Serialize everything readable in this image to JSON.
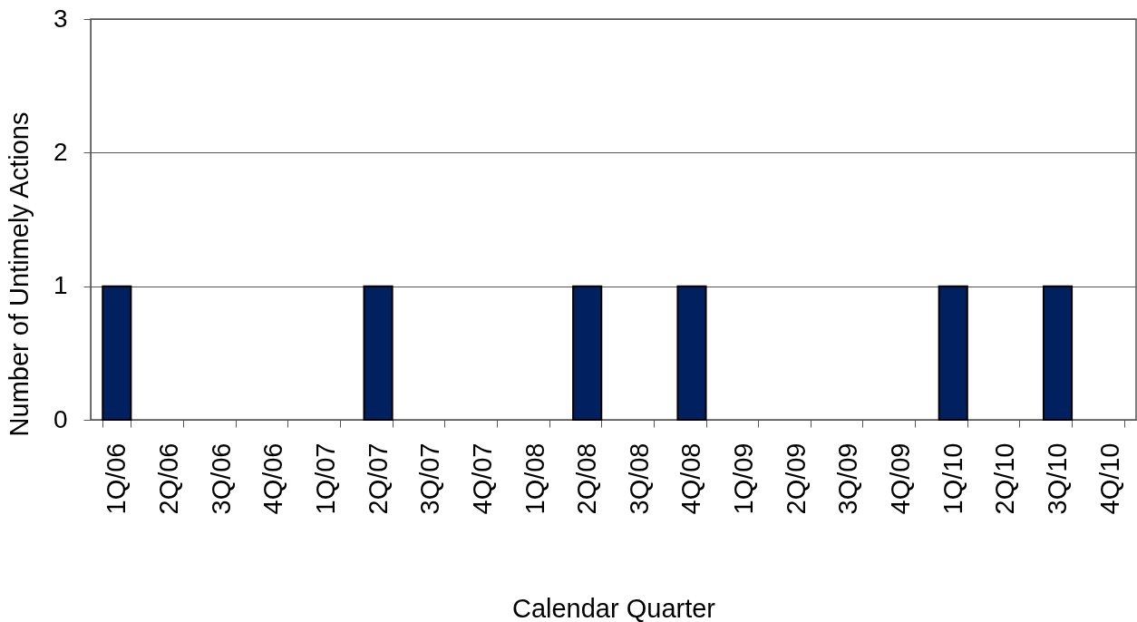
{
  "chart_data": {
    "type": "bar",
    "categories": [
      "1Q/06",
      "2Q/06",
      "3Q/06",
      "4Q/06",
      "1Q/07",
      "2Q/07",
      "3Q/07",
      "4Q/07",
      "1Q/08",
      "2Q/08",
      "3Q/08",
      "4Q/08",
      "1Q/09",
      "2Q/09",
      "3Q/09",
      "4Q/09",
      "1Q/10",
      "2Q/10",
      "3Q/10",
      "4Q/10"
    ],
    "values": [
      1,
      0,
      0,
      0,
      0,
      1,
      0,
      0,
      0,
      1,
      0,
      1,
      0,
      0,
      0,
      0,
      1,
      0,
      1,
      0
    ],
    "color": "#002060",
    "xlabel": "Calendar Quarter",
    "ylabel": "Number of Untimely Actions",
    "ylim": [
      0,
      3
    ],
    "yticks": [
      0,
      1,
      2,
      3
    ],
    "grid": "y"
  }
}
